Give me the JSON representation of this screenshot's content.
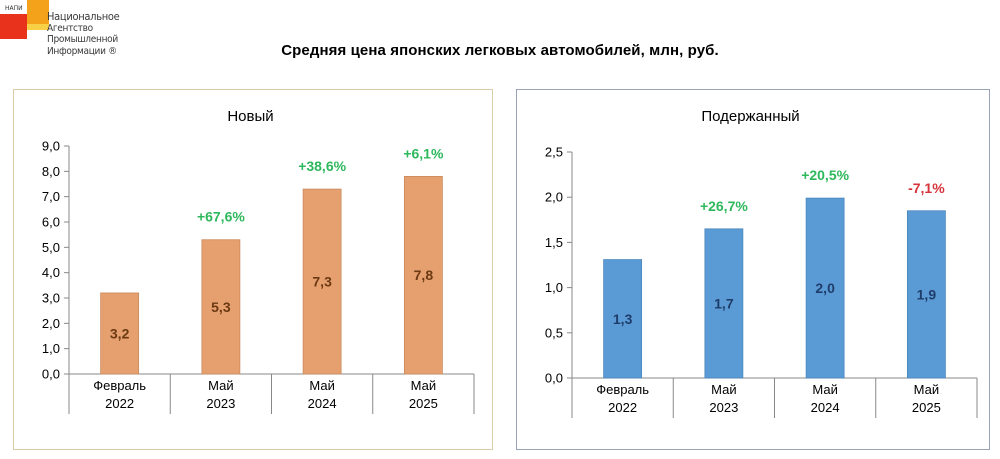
{
  "logo": {
    "abbr": "НАПИ",
    "lines": [
      "Национальное",
      "Агентство",
      "Промышленной",
      "Информации ®"
    ]
  },
  "page_title": "Средняя цена японских легковых автомобилей, млн, руб.",
  "colors": {
    "new_bar": "#e6a070",
    "new_bar_stroke": "#c98a5e",
    "new_label": "#6b3a12",
    "used_bar": "#5b9bd5",
    "used_bar_stroke": "#4a86bd",
    "used_label": "#1f3d6b",
    "increase": "#2eb85c",
    "decrease": "#d6333a"
  },
  "chart_data": [
    {
      "type": "bar",
      "title": "Новый",
      "categories": [
        [
          "Февраль",
          "2022"
        ],
        [
          "Май",
          "2023"
        ],
        [
          "Май",
          "2024"
        ],
        [
          "Май",
          "2025"
        ]
      ],
      "values": [
        3.2,
        5.3,
        7.3,
        7.8
      ],
      "value_labels": [
        "3,2",
        "5,3",
        "7,3",
        "7,8"
      ],
      "change_labels": [
        "",
        "+67,6%",
        "+38,6%",
        "+6,1%"
      ],
      "change_signs": [
        0,
        1,
        1,
        1
      ],
      "ylim": [
        0,
        9
      ],
      "yticks": [
        "0,0",
        "1,0",
        "2,0",
        "3,0",
        "4,0",
        "5,0",
        "6,0",
        "7,0",
        "8,0",
        "9,0"
      ],
      "grid": false,
      "legend": "none"
    },
    {
      "type": "bar",
      "title": "Подержанный",
      "categories": [
        [
          "Февраль",
          "2022"
        ],
        [
          "Май",
          "2023"
        ],
        [
          "Май",
          "2024"
        ],
        [
          "Май",
          "2025"
        ]
      ],
      "values": [
        1.31,
        1.65,
        1.99,
        1.85
      ],
      "value_labels": [
        "1,3",
        "1,7",
        "2,0",
        "1,9"
      ],
      "change_labels": [
        "",
        "+26,7%",
        "+20,5%",
        "-7,1%"
      ],
      "change_signs": [
        0,
        1,
        1,
        -1
      ],
      "ylim": [
        0,
        2.5
      ],
      "yticks": [
        "0,0",
        "0,5",
        "1,0",
        "1,5",
        "2,0",
        "2,5"
      ],
      "grid": false,
      "legend": "none"
    }
  ]
}
